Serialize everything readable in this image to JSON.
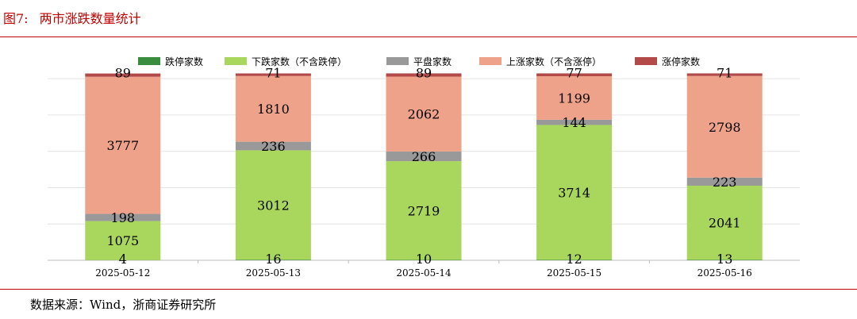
{
  "figure": {
    "label": "图7:",
    "title": "两市涨跌数量统计",
    "source": "数据来源：Wind，浙商证券研究所"
  },
  "chart_data": {
    "type": "bar",
    "stacked": true,
    "title": "",
    "xlabel": "",
    "ylabel": "",
    "categories": [
      "2025-05-12",
      "2025-05-13",
      "2025-05-14",
      "2025-05-15",
      "2025-05-16"
    ],
    "ylim": [
      0,
      5200
    ],
    "grid": true,
    "legend_position": "top",
    "series": [
      {
        "name": "跌停家数",
        "color": "#3a8c3f",
        "values": [
          4,
          16,
          10,
          12,
          13
        ]
      },
      {
        "name": "下跌家数（不含跌停）",
        "color": "#a9d65c",
        "values": [
          1075,
          3012,
          2719,
          3714,
          2041
        ]
      },
      {
        "name": "平盘家数",
        "color": "#999999",
        "values": [
          198,
          236,
          266,
          144,
          223
        ]
      },
      {
        "name": "上涨家数（不含涨停）",
        "color": "#eea289",
        "values": [
          3777,
          1810,
          2062,
          1199,
          2798
        ]
      },
      {
        "name": "涨停家数",
        "color": "#b24a4a",
        "values": [
          89,
          71,
          89,
          77,
          71
        ]
      }
    ]
  }
}
